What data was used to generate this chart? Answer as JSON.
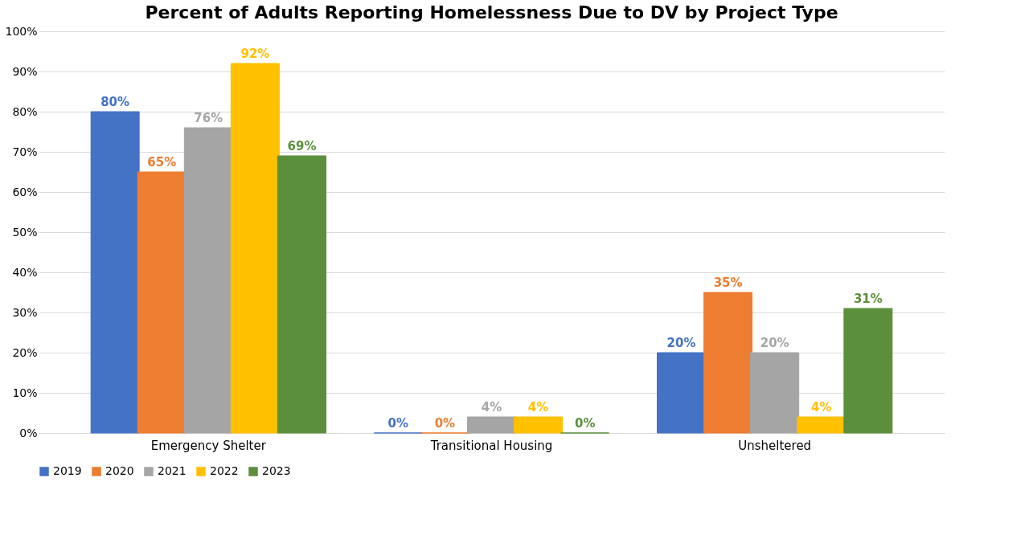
{
  "chart_data": {
    "type": "bar",
    "title": "Percent of Adults Reporting Homelessness Due to DV by Project Type",
    "categories": [
      "Emergency Shelter",
      "Transitional Housing",
      "Unsheltered"
    ],
    "series": [
      {
        "name": "2019",
        "color": "#4472c4",
        "values": [
          80,
          0,
          20
        ],
        "value_labels": [
          "80%",
          "0%",
          "20%"
        ]
      },
      {
        "name": "2020",
        "color": "#ed7d31",
        "values": [
          65,
          0,
          35
        ],
        "value_labels": [
          "65%",
          "0%",
          "35%"
        ]
      },
      {
        "name": "2021",
        "color": "#a5a5a5",
        "values": [
          76,
          4,
          20
        ],
        "value_labels": [
          "76%",
          "4%",
          "20%"
        ]
      },
      {
        "name": "2022",
        "color": "#ffc000",
        "values": [
          92,
          4,
          4
        ],
        "value_labels": [
          "92%",
          "4%",
          "4%"
        ]
      },
      {
        "name": "2023",
        "color": "#5b8f3c",
        "values": [
          69,
          0,
          31
        ],
        "value_labels": [
          "69%",
          "0%",
          "31%"
        ]
      }
    ],
    "ylim": [
      0,
      100
    ],
    "yticks": [
      {
        "value": 0,
        "label": "0%"
      },
      {
        "value": 10,
        "label": "10%"
      },
      {
        "value": 20,
        "label": "20%"
      },
      {
        "value": 30,
        "label": "30%"
      },
      {
        "value": 40,
        "label": "40%"
      },
      {
        "value": 50,
        "label": "50%"
      },
      {
        "value": 60,
        "label": "60%"
      },
      {
        "value": 70,
        "label": "70%"
      },
      {
        "value": 80,
        "label": "80%"
      },
      {
        "value": 90,
        "label": "90%"
      },
      {
        "value": 100,
        "label": "100%"
      }
    ],
    "grid": "y",
    "legend": "bottom"
  }
}
